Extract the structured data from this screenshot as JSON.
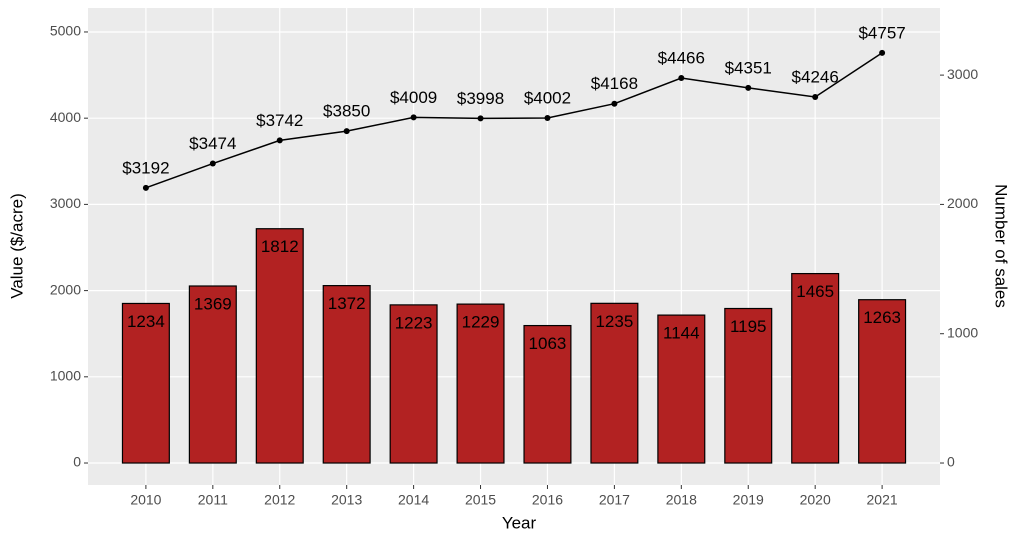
{
  "chart_data": {
    "type": "bar",
    "x_label": "Year",
    "y_label": "Value ($/acre)",
    "y2_label": "Number of sales",
    "categories": [
      "2010",
      "2011",
      "2012",
      "2013",
      "2014",
      "2015",
      "2016",
      "2017",
      "2018",
      "2019",
      "2020",
      "2021"
    ],
    "series": [
      {
        "type": "bar",
        "axis": "y2",
        "color": "#b22222",
        "values": [
          1234,
          1369,
          1812,
          1372,
          1223,
          1229,
          1063,
          1235,
          1144,
          1195,
          1465,
          1263
        ]
      },
      {
        "type": "line",
        "color": "#000000",
        "values": [
          3192,
          3474,
          3742,
          3850,
          4009,
          3998,
          4002,
          4168,
          4466,
          4351,
          4246,
          4757
        ],
        "value_labels": [
          "$3192",
          "$3474",
          "$3742",
          "$3850",
          "$4009",
          "$3998",
          "$4002",
          "$4168",
          "$4466",
          "$4351",
          "$4246",
          "$4757"
        ]
      }
    ],
    "ylim": [
      -255,
      5278
    ],
    "yticks": [
      0,
      1000,
      2000,
      3000,
      4000,
      5000
    ],
    "y2lim": [
      -170,
      3519
    ],
    "y2ticks": [
      0,
      1000,
      2000,
      3000
    ],
    "grid": true
  }
}
